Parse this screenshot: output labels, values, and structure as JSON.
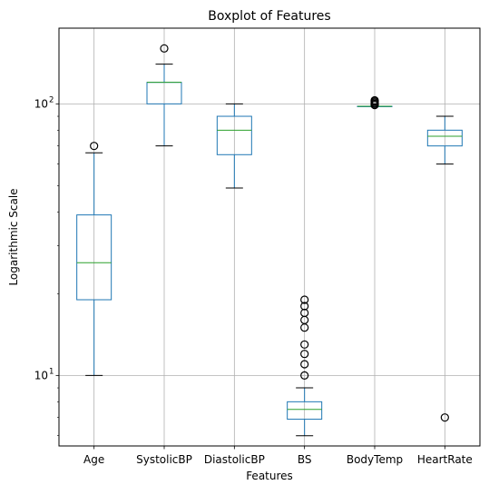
{
  "chart_data": {
    "type": "boxplot",
    "title": "Boxplot of Features",
    "xlabel": "Features",
    "ylabel": "Logarithmic Scale",
    "yscale": "log",
    "ylim": [
      5.5,
      190
    ],
    "yticks": [
      {
        "value": 10,
        "label": "10",
        "sup": "1"
      },
      {
        "value": 100,
        "label": "10",
        "sup": "2"
      }
    ],
    "grid": true,
    "colors": {
      "box": "#1f77b4",
      "median": "#2ca02c",
      "flier": "#000000",
      "whisker": "#000000",
      "grid": "#b0b0b0"
    },
    "series": [
      {
        "name": "Age",
        "whisker_low": 10,
        "q1": 19,
        "median": 26,
        "q3": 39,
        "whisker_high": 66,
        "fliers": [
          70
        ]
      },
      {
        "name": "SystolicBP",
        "whisker_low": 70,
        "q1": 100,
        "median": 120,
        "q3": 120,
        "whisker_high": 140,
        "fliers": [
          160
        ]
      },
      {
        "name": "DiastolicBP",
        "whisker_low": 49,
        "q1": 65,
        "median": 80,
        "q3": 90,
        "whisker_high": 100,
        "fliers": []
      },
      {
        "name": "BS",
        "whisker_low": 6,
        "q1": 6.9,
        "median": 7.5,
        "q3": 8,
        "whisker_high": 9,
        "fliers": [
          10,
          11,
          12,
          13,
          15,
          16,
          17,
          18,
          19
        ]
      },
      {
        "name": "BodyTemp",
        "whisker_low": 98,
        "q1": 98,
        "median": 98,
        "q3": 98,
        "whisker_high": 98,
        "fliers": [
          99,
          100,
          101,
          102,
          103
        ]
      },
      {
        "name": "HeartRate",
        "whisker_low": 60,
        "q1": 70,
        "median": 76,
        "q3": 80,
        "whisker_high": 90,
        "fliers": [
          7
        ]
      }
    ]
  }
}
